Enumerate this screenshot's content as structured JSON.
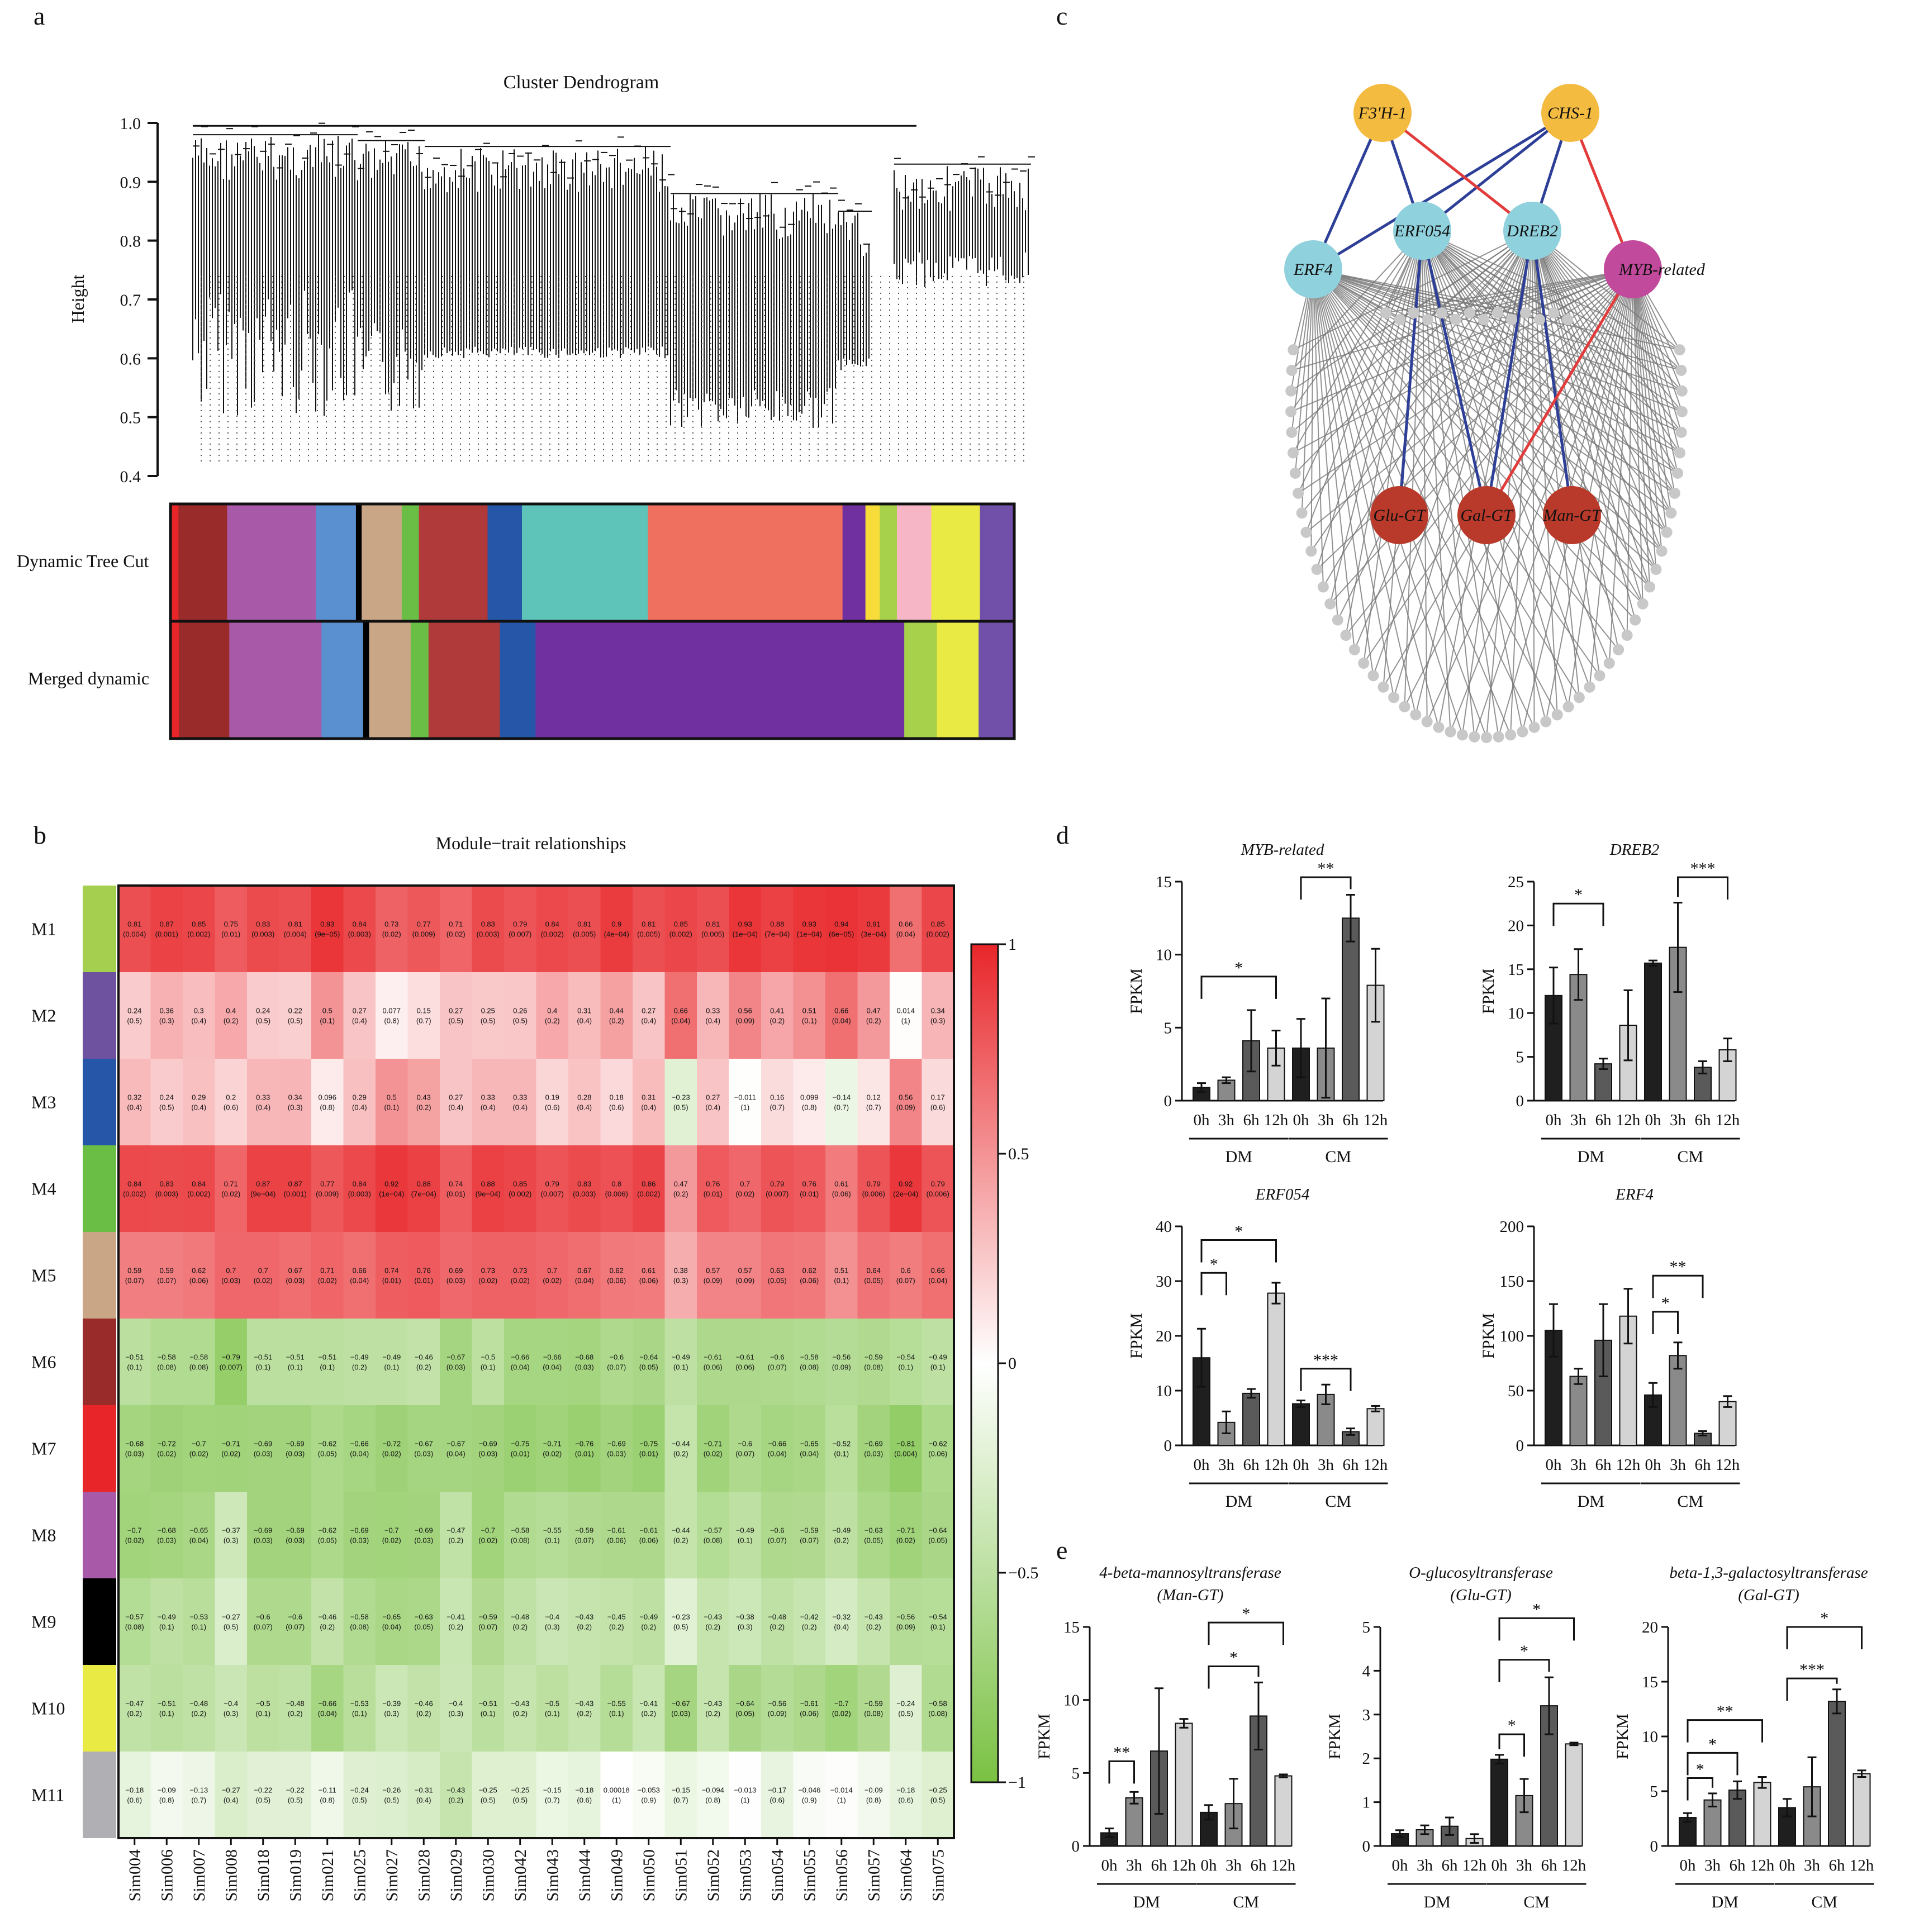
{
  "colors": {
    "heat_pos": "#e8262a",
    "heat_zero": "#ffffff",
    "heat_neg": "#7ac143",
    "bar_0h": "#1f1f1f",
    "bar_3h": "#8a8a8a",
    "bar_6h": "#5a5a5a",
    "bar_12h": "#d4d4d4",
    "node_orange": "#f4bb41",
    "node_cyan": "#8fd1dc",
    "node_magenta": "#c24a9c",
    "node_red": "#b93a2b",
    "edge_blue": "#2e3f98",
    "edge_red": "#e23b3b",
    "edge_grey": "#777777",
    "peripheral": "#c8c8c8"
  },
  "panel_a": {
    "letter": "a",
    "title": "Cluster Dendrogram",
    "ylabel": "Height",
    "yticks": [
      "1.0",
      "0.9",
      "0.8",
      "0.7",
      "0.6",
      "0.5",
      "0.4"
    ],
    "row_labels": [
      "Dynamic Tree Cut",
      "Merged dynamic"
    ],
    "dynamic_colors": [
      "#e8262a",
      "#9a2b2b",
      "#a85aa8",
      "#5a8fd0",
      "#000000",
      "#c9a686",
      "#6bbe45",
      "#b03a3a",
      "#2556a8",
      "#5ec3b8",
      "#f07060",
      "#7030a0",
      "#f7dc3a",
      "#a7d14a",
      "#f6b6c6",
      "#eaea44",
      "#7050a8"
    ],
    "merged_colors": [
      "#e8262a",
      "#9a2b2b",
      "#a85aa8",
      "#5a8fd0",
      "#000000",
      "#c9a686",
      "#6bbe45",
      "#b03a3a",
      "#2556a8",
      "#7030a0",
      "#a7d14a",
      "#eaea44",
      "#7050a8"
    ]
  },
  "panel_b": {
    "letter": "b",
    "title": "Module−trait relationships",
    "modules": [
      "M1",
      "M2",
      "M3",
      "M4",
      "M5",
      "M6",
      "M7",
      "M8",
      "M9",
      "M10",
      "M11"
    ],
    "module_colors": [
      "#a5cf4f",
      "#6e52a0",
      "#2556a8",
      "#6bbe45",
      "#c9a686",
      "#9a2b2b",
      "#e8262a",
      "#a85aa8",
      "#000000",
      "#eaea44",
      "#b0b0b4"
    ],
    "samples": [
      "Sim004",
      "Sim006",
      "Sim007",
      "Sim008",
      "Sim018",
      "Sim019",
      "Sim021",
      "Sim025",
      "Sim027",
      "Sim028",
      "Sim029",
      "Sim030",
      "Sim042",
      "Sim043",
      "Sim044",
      "Sim049",
      "Sim050",
      "Sim051",
      "Sim052",
      "Sim053",
      "Sim054",
      "Sim055",
      "Sim056",
      "Sim057",
      "Sim064",
      "Sim075"
    ],
    "legend_ticks": [
      "1",
      "0.5",
      "0",
      "−0.5",
      "−1"
    ],
    "values": [
      [
        "0.81",
        "0.87",
        "0.85",
        "0.75",
        "0.83",
        "0.81",
        "0.93",
        "0.84",
        "0.73",
        "0.77",
        "0.71",
        "0.83",
        "0.79",
        "0.84",
        "0.81",
        "0.9",
        "0.81",
        "0.85",
        "0.81",
        "0.93",
        "0.88",
        "0.93",
        "0.94",
        "0.91",
        "0.66",
        "0.85"
      ],
      [
        "0.24",
        "0.36",
        "0.3",
        "0.4",
        "0.24",
        "0.22",
        "0.5",
        "0.27",
        "0.077",
        "0.15",
        "0.27",
        "0.25",
        "0.26",
        "0.4",
        "0.31",
        "0.44",
        "0.27",
        "0.66",
        "0.33",
        "0.56",
        "0.41",
        "0.51",
        "0.66",
        "0.47",
        "0.014",
        "0.34"
      ],
      [
        "0.32",
        "0.24",
        "0.29",
        "0.2",
        "0.33",
        "0.34",
        "0.096",
        "0.29",
        "0.5",
        "0.43",
        "0.27",
        "0.33",
        "0.33",
        "0.19",
        "0.28",
        "0.18",
        "0.31",
        "−0.23",
        "0.27",
        "−0.011",
        "0.16",
        "0.099",
        "−0.14",
        "0.12",
        "0.56",
        "0.17"
      ],
      [
        "0.84",
        "0.83",
        "0.84",
        "0.71",
        "0.87",
        "0.87",
        "0.77",
        "0.84",
        "0.92",
        "0.88",
        "0.74",
        "0.88",
        "0.85",
        "0.79",
        "0.83",
        "0.8",
        "0.86",
        "0.47",
        "0.76",
        "0.7",
        "0.79",
        "0.76",
        "0.61",
        "0.79",
        "0.92",
        "0.79"
      ],
      [
        "0.59",
        "0.59",
        "0.62",
        "0.7",
        "0.7",
        "0.67",
        "0.71",
        "0.66",
        "0.74",
        "0.76",
        "0.69",
        "0.73",
        "0.73",
        "0.7",
        "0.67",
        "0.62",
        "0.61",
        "0.38",
        "0.57",
        "0.57",
        "0.63",
        "0.62",
        "0.51",
        "0.64",
        "0.6",
        "0.66"
      ],
      [
        "−0.51",
        "−0.58",
        "−0.58",
        "−0.79",
        "−0.51",
        "−0.51",
        "−0.51",
        "−0.49",
        "−0.49",
        "−0.46",
        "−0.67",
        "−0.5",
        "−0.66",
        "−0.66",
        "−0.68",
        "−0.6",
        "−0.64",
        "−0.49",
        "−0.61",
        "−0.61",
        "−0.6",
        "−0.58",
        "−0.56",
        "−0.59",
        "−0.54",
        "−0.49"
      ],
      [
        "−0.68",
        "−0.72",
        "−0.7",
        "−0.71",
        "−0.69",
        "−0.69",
        "−0.62",
        "−0.66",
        "−0.72",
        "−0.67",
        "−0.67",
        "−0.69",
        "−0.75",
        "−0.71",
        "−0.76",
        "−0.69",
        "−0.75",
        "−0.44",
        "−0.71",
        "−0.6",
        "−0.66",
        "−0.65",
        "−0.52",
        "−0.69",
        "−0.81",
        "−0.62"
      ],
      [
        "−0.7",
        "−0.68",
        "−0.65",
        "−0.37",
        "−0.69",
        "−0.69",
        "−0.62",
        "−0.69",
        "−0.7",
        "−0.69",
        "−0.47",
        "−0.7",
        "−0.58",
        "−0.55",
        "−0.59",
        "−0.61",
        "−0.61",
        "−0.44",
        "−0.57",
        "−0.49",
        "−0.6",
        "−0.59",
        "−0.49",
        "−0.63",
        "−0.71",
        "−0.64"
      ],
      [
        "−0.57",
        "−0.49",
        "−0.53",
        "−0.27",
        "−0.6",
        "−0.6",
        "−0.46",
        "−0.58",
        "−0.65",
        "−0.63",
        "−0.41",
        "−0.59",
        "−0.48",
        "−0.4",
        "−0.43",
        "−0.45",
        "−0.49",
        "−0.23",
        "−0.43",
        "−0.38",
        "−0.48",
        "−0.42",
        "−0.32",
        "−0.43",
        "−0.56",
        "−0.54"
      ],
      [
        "−0.47",
        "−0.51",
        "−0.48",
        "−0.4",
        "−0.5",
        "−0.48",
        "−0.66",
        "−0.53",
        "−0.39",
        "−0.46",
        "−0.4",
        "−0.51",
        "−0.43",
        "−0.5",
        "−0.43",
        "−0.55",
        "−0.41",
        "−0.67",
        "−0.43",
        "−0.64",
        "−0.56",
        "−0.61",
        "−0.7",
        "−0.59",
        "−0.24",
        "−0.58"
      ],
      [
        "−0.18",
        "−0.09",
        "−0.13",
        "−0.27",
        "−0.22",
        "−0.22",
        "−0.11",
        "−0.24",
        "−0.26",
        "−0.31",
        "−0.43",
        "−0.25",
        "−0.25",
        "−0.15",
        "−0.18",
        "0.00018",
        "−0.053",
        "−0.15",
        "−0.094",
        "−0.013",
        "−0.17",
        "−0.046",
        "−0.014",
        "−0.09",
        "−0.18",
        "−0.25"
      ]
    ],
    "pvalues": [
      [
        "(0.004)",
        "(0.001)",
        "(0.002)",
        "(0.01)",
        "(0.003)",
        "(0.004)",
        "(9e−05)",
        "(0.003)",
        "(0.02)",
        "(0.009)",
        "(0.02)",
        "(0.003)",
        "(0.007)",
        "(0.002)",
        "(0.005)",
        "(4e−04)",
        "(0.005)",
        "(0.002)",
        "(0.005)",
        "(1e−04)",
        "(7e−04)",
        "(1e−04)",
        "(6e−05)",
        "(3e−04)",
        "(0.04)",
        "(0.002)"
      ],
      [
        "(0.5)",
        "(0.3)",
        "(0.4)",
        "(0.2)",
        "(0.5)",
        "(0.5)",
        "(0.1)",
        "(0.4)",
        "(0.8)",
        "(0.7)",
        "(0.5)",
        "(0.5)",
        "(0.5)",
        "(0.2)",
        "(0.4)",
        "(0.2)",
        "(0.4)",
        "(0.04)",
        "(0.4)",
        "(0.09)",
        "(0.2)",
        "(0.1)",
        "(0.04)",
        "(0.2)",
        "(1)",
        "(0.3)"
      ],
      [
        "(0.4)",
        "(0.5)",
        "(0.4)",
        "(0.6)",
        "(0.4)",
        "(0.3)",
        "(0.8)",
        "(0.4)",
        "(0.1)",
        "(0.2)",
        "(0.4)",
        "(0.4)",
        "(0.4)",
        "(0.6)",
        "(0.4)",
        "(0.6)",
        "(0.4)",
        "(0.5)",
        "(0.4)",
        "(1)",
        "(0.7)",
        "(0.8)",
        "(0.7)",
        "(0.7)",
        "(0.09)",
        "(0.6)"
      ],
      [
        "(0.002)",
        "(0.003)",
        "(0.002)",
        "(0.02)",
        "(9e−04)",
        "(0.001)",
        "(0.009)",
        "(0.003)",
        "(1e−04)",
        "(7e−04)",
        "(0.01)",
        "(9e−04)",
        "(0.002)",
        "(0.007)",
        "(0.003)",
        "(0.006)",
        "(0.002)",
        "(0.2)",
        "(0.01)",
        "(0.02)",
        "(0.007)",
        "(0.01)",
        "(0.06)",
        "(0.006)",
        "(2e−04)",
        "(0.006)"
      ],
      [
        "(0.07)",
        "(0.07)",
        "(0.06)",
        "(0.03)",
        "(0.02)",
        "(0.03)",
        "(0.02)",
        "(0.04)",
        "(0.01)",
        "(0.01)",
        "(0.03)",
        "(0.02)",
        "(0.02)",
        "(0.02)",
        "(0.04)",
        "(0.06)",
        "(0.06)",
        "(0.3)",
        "(0.09)",
        "(0.09)",
        "(0.05)",
        "(0.06)",
        "(0.1)",
        "(0.05)",
        "(0.07)",
        "(0.04)"
      ],
      [
        "(0.1)",
        "(0.08)",
        "(0.08)",
        "(0.007)",
        "(0.1)",
        "(0.1)",
        "(0.1)",
        "(0.2)",
        "(0.1)",
        "(0.2)",
        "(0.03)",
        "(0.1)",
        "(0.04)",
        "(0.04)",
        "(0.03)",
        "(0.07)",
        "(0.05)",
        "(0.1)",
        "(0.06)",
        "(0.06)",
        "(0.07)",
        "(0.08)",
        "(0.09)",
        "(0.08)",
        "(0.1)",
        "(0.1)"
      ],
      [
        "(0.03)",
        "(0.02)",
        "(0.02)",
        "(0.02)",
        "(0.03)",
        "(0.03)",
        "(0.05)",
        "(0.04)",
        "(0.02)",
        "(0.03)",
        "(0.04)",
        "(0.03)",
        "(0.01)",
        "(0.02)",
        "(0.01)",
        "(0.03)",
        "(0.01)",
        "(0.2)",
        "(0.02)",
        "(0.07)",
        "(0.04)",
        "(0.04)",
        "(0.1)",
        "(0.03)",
        "(0.004)",
        "(0.06)"
      ],
      [
        "(0.02)",
        "(0.03)",
        "(0.04)",
        "(0.3)",
        "(0.03)",
        "(0.03)",
        "(0.05)",
        "(0.03)",
        "(0.02)",
        "(0.03)",
        "(0.2)",
        "(0.02)",
        "(0.08)",
        "(0.1)",
        "(0.07)",
        "(0.06)",
        "(0.06)",
        "(0.2)",
        "(0.08)",
        "(0.1)",
        "(0.07)",
        "(0.07)",
        "(0.2)",
        "(0.05)",
        "(0.02)",
        "(0.05)"
      ],
      [
        "(0.08)",
        "(0.1)",
        "(0.1)",
        "(0.5)",
        "(0.07)",
        "(0.07)",
        "(0.2)",
        "(0.08)",
        "(0.04)",
        "(0.05)",
        "(0.2)",
        "(0.07)",
        "(0.2)",
        "(0.3)",
        "(0.2)",
        "(0.2)",
        "(0.2)",
        "(0.5)",
        "(0.2)",
        "(0.3)",
        "(0.2)",
        "(0.2)",
        "(0.4)",
        "(0.2)",
        "(0.09)",
        "(0.1)"
      ],
      [
        "(0.2)",
        "(0.1)",
        "(0.2)",
        "(0.3)",
        "(0.1)",
        "(0.2)",
        "(0.04)",
        "(0.1)",
        "(0.3)",
        "(0.2)",
        "(0.3)",
        "(0.1)",
        "(0.2)",
        "(0.1)",
        "(0.2)",
        "(0.1)",
        "(0.2)",
        "(0.03)",
        "(0.2)",
        "(0.05)",
        "(0.09)",
        "(0.06)",
        "(0.02)",
        "(0.08)",
        "(0.5)",
        "(0.08)"
      ],
      [
        "(0.6)",
        "(0.8)",
        "(0.7)",
        "(0.4)",
        "(0.5)",
        "(0.5)",
        "(0.8)",
        "(0.5)",
        "(0.5)",
        "(0.4)",
        "(0.2)",
        "(0.5)",
        "(0.5)",
        "(0.7)",
        "(0.6)",
        "(1)",
        "(0.9)",
        "(0.7)",
        "(0.8)",
        "(1)",
        "(0.6)",
        "(0.9)",
        "(1)",
        "(0.8)",
        "(0.6)",
        "(0.5)"
      ]
    ]
  },
  "panel_c": {
    "letter": "c",
    "nodes": {
      "f3h": "F3'H-1",
      "chs": "CHS-1",
      "erf054": "ERF054",
      "dreb2": "DREB2",
      "erf4": "ERF4",
      "myb": "MYB-related",
      "glu": "Glu-GT",
      "gal": "Gal-GT",
      "man": "Man-GT"
    }
  },
  "panel_d": {
    "letter": "d",
    "ylabel": "FPKM",
    "xticks": [
      "0h",
      "3h",
      "6h",
      "12h",
      "0h",
      "3h",
      "6h",
      "12h"
    ],
    "group_labels": [
      "DM",
      "CM"
    ],
    "charts": [
      {
        "title": "MYB-related",
        "ymax": 15,
        "yticks": [
          "0",
          "5",
          "10",
          "15"
        ],
        "values": [
          0.9,
          1.4,
          4.1,
          3.6,
          3.6,
          3.6,
          12.5,
          7.9
        ],
        "errors": [
          0.3,
          0.2,
          2.1,
          1.2,
          2.0,
          3.4,
          1.6,
          2.5
        ],
        "sig": [
          {
            "from": 0,
            "to": 3,
            "label": "*",
            "h": 8.5
          },
          {
            "from": 4,
            "to": 6,
            "label": "**",
            "h": 15.3
          }
        ]
      },
      {
        "title": "DREB2",
        "ymax": 25,
        "yticks": [
          "0",
          "5",
          "10",
          "15",
          "20",
          "25"
        ],
        "values": [
          12.0,
          14.4,
          4.2,
          8.6,
          15.7,
          17.5,
          3.8,
          5.8
        ],
        "errors": [
          3.2,
          2.9,
          0.6,
          4.0,
          0.3,
          5.1,
          0.7,
          1.3
        ],
        "sig": [
          {
            "from": 0,
            "to": 2,
            "label": "*",
            "h": 22.5
          },
          {
            "from": 5,
            "to": 7,
            "label": "***",
            "h": 25.5
          }
        ]
      },
      {
        "title": "ERF054",
        "ymax": 40,
        "yticks": [
          "0",
          "10",
          "20",
          "30",
          "40"
        ],
        "values": [
          16.0,
          4.2,
          9.5,
          27.8,
          7.6,
          9.3,
          2.5,
          6.7
        ],
        "errors": [
          5.3,
          2.0,
          0.8,
          1.9,
          0.6,
          1.8,
          0.6,
          0.5
        ],
        "sig": [
          {
            "from": 0,
            "to": 1,
            "label": "*",
            "h": 31.5
          },
          {
            "from": 0,
            "to": 3,
            "label": "*",
            "h": 37.5
          },
          {
            "from": 4,
            "to": 6,
            "label": "***",
            "h": 14.0
          }
        ]
      },
      {
        "title": "ERF4",
        "ymax": 200,
        "yticks": [
          "0",
          "50",
          "100",
          "150",
          "200"
        ],
        "values": [
          105,
          63,
          96,
          118,
          46,
          82,
          11,
          40
        ],
        "errors": [
          24,
          7,
          33,
          25,
          11,
          12,
          2,
          5
        ],
        "sig": [
          {
            "from": 4,
            "to": 5,
            "label": "*",
            "h": 122
          },
          {
            "from": 4,
            "to": 6,
            "label": "**",
            "h": 155
          }
        ]
      }
    ]
  },
  "panel_e": {
    "letter": "e",
    "ylabel": "FPKM",
    "xticks": [
      "0h",
      "3h",
      "6h",
      "12h",
      "0h",
      "3h",
      "6h",
      "12h"
    ],
    "group_labels": [
      "DM",
      "CM"
    ],
    "charts": [
      {
        "title": "4-beta-mannosyltransferase",
        "subtitle": "(Man-GT)",
        "ymax": 15,
        "yticks": [
          "0",
          "5",
          "10",
          "15"
        ],
        "values": [
          0.9,
          3.3,
          6.5,
          8.4,
          2.3,
          2.9,
          8.9,
          4.8
        ],
        "errors": [
          0.3,
          0.4,
          4.3,
          0.3,
          0.5,
          1.7,
          2.3,
          0.1
        ],
        "sig": [
          {
            "from": 0,
            "to": 1,
            "label": "**",
            "h": 5.8
          },
          {
            "from": 4,
            "to": 6,
            "label": "*",
            "h": 12.3
          },
          {
            "from": 4,
            "to": 7,
            "label": "*",
            "h": 15.3
          }
        ]
      },
      {
        "title": "O-glucosyltransferase",
        "subtitle": "(Glu-GT)",
        "ymax": 5,
        "yticks": [
          "0",
          "1",
          "2",
          "3",
          "4",
          "5"
        ],
        "values": [
          0.28,
          0.37,
          0.45,
          0.17,
          1.98,
          1.15,
          3.2,
          2.33
        ],
        "errors": [
          0.08,
          0.1,
          0.2,
          0.1,
          0.1,
          0.38,
          0.65,
          0.03
        ],
        "sig": [
          {
            "from": 4,
            "to": 5,
            "label": "*",
            "h": 2.55
          },
          {
            "from": 4,
            "to": 6,
            "label": "*",
            "h": 4.25
          },
          {
            "from": 4,
            "to": 7,
            "label": "*",
            "h": 5.2
          }
        ]
      },
      {
        "title": "beta-1,3-galactosyltransferase",
        "subtitle": "(Gal-GT)",
        "ymax": 20,
        "yticks": [
          "0",
          "5",
          "10",
          "15",
          "20"
        ],
        "values": [
          2.6,
          4.2,
          5.1,
          5.8,
          3.5,
          5.4,
          13.2,
          6.6
        ],
        "errors": [
          0.4,
          0.6,
          0.8,
          0.5,
          0.8,
          2.7,
          1.1,
          0.3
        ],
        "sig": [
          {
            "from": 0,
            "to": 1,
            "label": "*",
            "h": 6.2
          },
          {
            "from": 0,
            "to": 2,
            "label": "*",
            "h": 8.5
          },
          {
            "from": 0,
            "to": 3,
            "label": "**",
            "h": 11.5
          },
          {
            "from": 4,
            "to": 6,
            "label": "***",
            "h": 15.3
          },
          {
            "from": 4,
            "to": 7,
            "label": "*",
            "h": 20.0
          }
        ]
      }
    ]
  }
}
